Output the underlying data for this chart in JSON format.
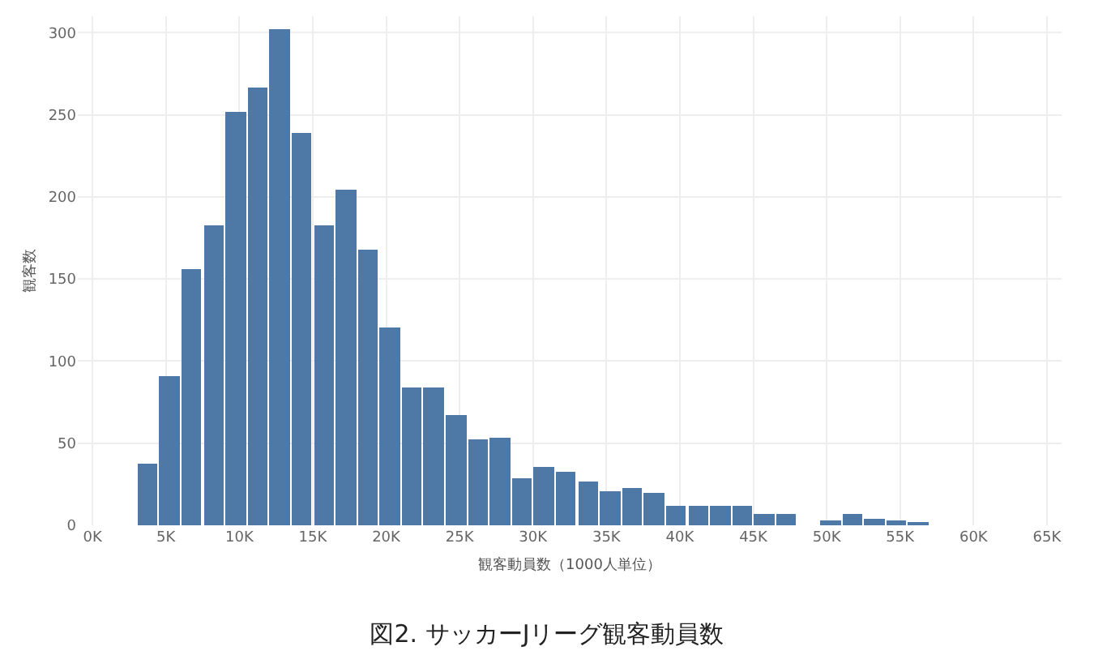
{
  "chart_data": {
    "type": "histogram",
    "title": "図2. サッカーJリーグ観客動員数",
    "xlabel": "観客動員数（1000人単位）",
    "ylabel": "観客数",
    "bins": [
      3000,
      4500,
      6000,
      7500,
      9000,
      10500,
      12000,
      13500,
      15000,
      16500,
      18000,
      19500,
      21000,
      22500,
      24000,
      25500,
      27000,
      28500,
      30000,
      31500,
      33000,
      34500,
      36000,
      37500,
      39000,
      40500,
      42000,
      43500,
      45000,
      46500,
      48000,
      49500,
      51000,
      52500,
      54000,
      55500,
      57000
    ],
    "values": [
      38,
      91,
      156,
      183,
      252,
      267,
      302,
      239,
      183,
      204,
      168,
      120,
      84,
      84,
      67,
      52,
      53,
      29,
      36,
      33,
      27,
      21,
      23,
      20,
      12,
      12,
      12,
      12,
      7,
      7,
      0,
      3,
      7,
      4,
      3,
      2
    ],
    "color": "#4e79a7",
    "xlim": [
      -1000,
      66000
    ],
    "xticks": [
      {
        "value": 0,
        "label": "0K"
      },
      {
        "value": 5000,
        "label": "5K"
      },
      {
        "value": 10000,
        "label": "10K"
      },
      {
        "value": 15000,
        "label": "15K"
      },
      {
        "value": 20000,
        "label": "20K"
      },
      {
        "value": 25000,
        "label": "25K"
      },
      {
        "value": 30000,
        "label": "30K"
      },
      {
        "value": 35000,
        "label": "35K"
      },
      {
        "value": 40000,
        "label": "40K"
      },
      {
        "value": 45000,
        "label": "45K"
      },
      {
        "value": 50000,
        "label": "50K"
      },
      {
        "value": 55000,
        "label": "55K"
      },
      {
        "value": 60000,
        "label": "60K"
      },
      {
        "value": 65000,
        "label": "65K"
      }
    ],
    "ylim": [
      0,
      310
    ],
    "yticks": [
      0,
      50,
      100,
      150,
      200,
      250,
      300
    ],
    "grid": true
  }
}
